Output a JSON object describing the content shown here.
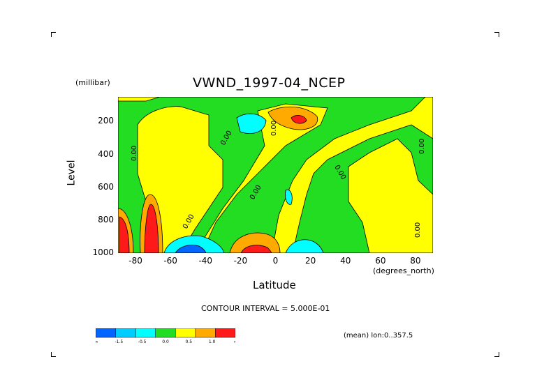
{
  "chart_data": {
    "type": "heatmap",
    "title": "VWND_1997-04_NCEP",
    "xlabel": "Latitude",
    "xunit": "(degrees_north)",
    "ylabel": "Level",
    "yunit": "(millibar)",
    "xlim": [
      -90,
      90
    ],
    "ylim": [
      1000,
      50
    ],
    "x_ticks": [
      -80,
      -60,
      -40,
      -20,
      0,
      20,
      40,
      60,
      80
    ],
    "y_ticks": [
      200,
      400,
      600,
      800,
      1000
    ],
    "contour_interval_text": "CONTOUR INTERVAL = 5.000E-01",
    "mean_note": "(mean) lon:0..357.5",
    "contour_labels": [
      "0.00"
    ],
    "colorbar": {
      "colors": [
        "#0066ff",
        "#00ccff",
        "#00ffff",
        "#22dd22",
        "#ffff00",
        "#ffaa00",
        "#ff1a1a"
      ],
      "labels": [
        "-∞",
        "-1.5",
        "-0.5",
        "0.0",
        "0.5",
        "1.0",
        "∞"
      ]
    },
    "regions": [
      {
        "level": "0.0 to 0.5",
        "color": "#22dd22",
        "description": "background band"
      },
      {
        "level": "0.5 to 1.0",
        "color": "#ffff00"
      },
      {
        "level": "1.0 to 1.5",
        "color": "#ffaa00"
      },
      {
        "level": "> 1.5",
        "color": "#ff1a1a"
      },
      {
        "level": "-0.5 to 0.0",
        "color": "#00ffff"
      },
      {
        "level": "-1.5 to -0.5",
        "color": "#00ccff"
      },
      {
        "level": "< -1.5",
        "color": "#0066ff"
      }
    ]
  }
}
